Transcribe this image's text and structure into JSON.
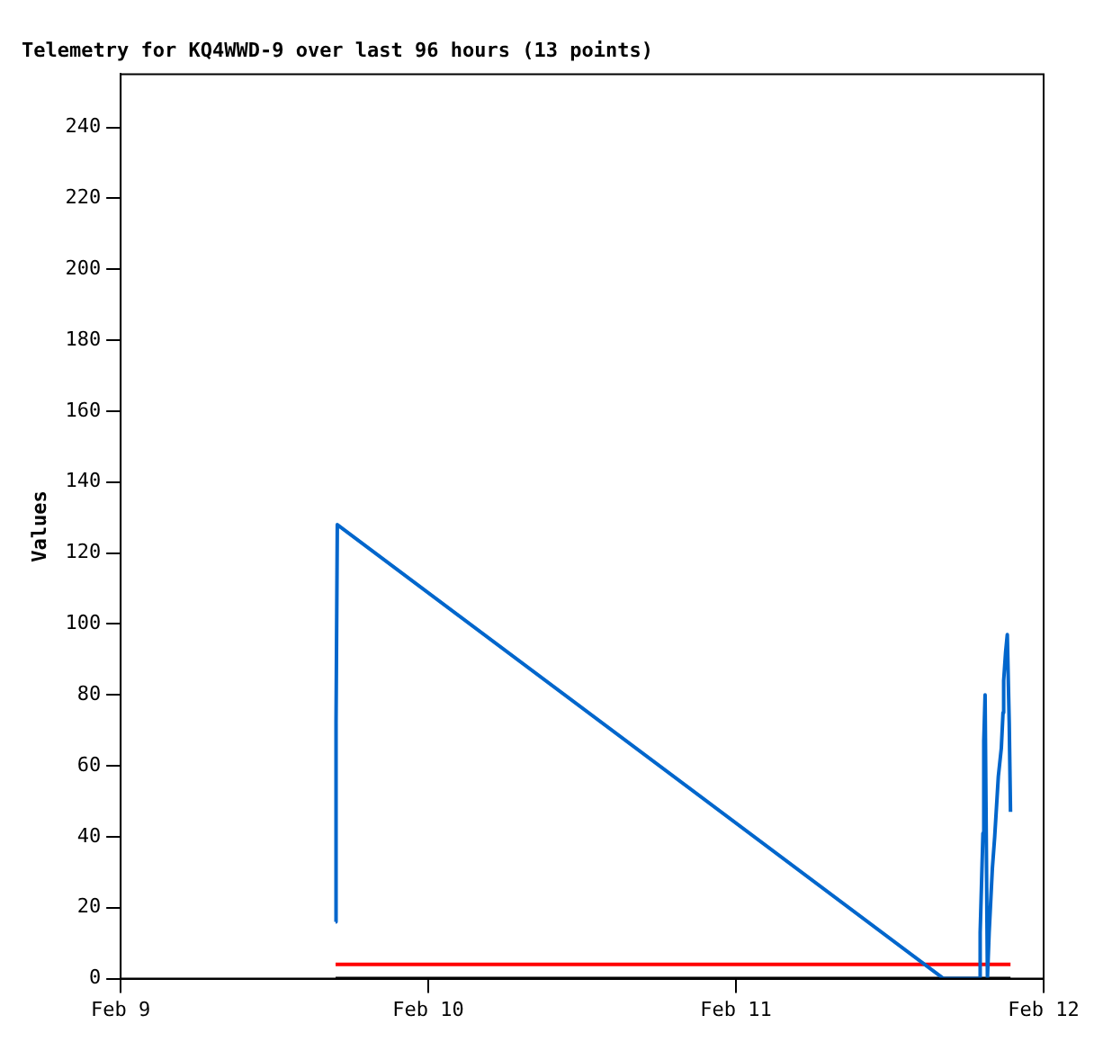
{
  "chart_data": {
    "type": "line",
    "title": "Telemetry for KQ4WWD-9 over last 96 hours (13 points)",
    "ylabel": "Values",
    "xlim": [
      "--02-09",
      "--02-12"
    ],
    "xticks": [
      {
        "value": "--02-09",
        "label": "Feb 9"
      },
      {
        "value": "--02-10",
        "label": "Feb 10"
      },
      {
        "value": "--02-11",
        "label": "Feb 11"
      },
      {
        "value": "--02-12",
        "label": "Feb 12"
      }
    ],
    "ylim": [
      0,
      255
    ],
    "yticks": [
      0,
      20,
      40,
      60,
      80,
      100,
      120,
      140,
      160,
      180,
      200,
      220,
      240
    ],
    "grid": false,
    "legend": false,
    "marker": "none",
    "line_style": "solid",
    "series": [
      {
        "color": "#0066cc",
        "x": [
          "--02-09T16:46",
          "--02-09T16:48",
          "--02-09T16:54",
          "--02-11T16:12",
          "--02-11T19:00",
          "--02-11T19:03",
          "--02-11T19:16",
          "--02-11T19:20",
          "--02-11T19:26",
          "--02-11T19:37",
          "--02-11T19:45",
          "--02-11T20:00",
          "--02-11T20:11",
          "--02-11T20:19",
          "--02-11T20:28",
          "--02-11T20:42",
          "--02-11T20:50",
          "--02-11T20:53",
          "--02-11T21:02",
          "--02-11T21:10",
          "--02-11T21:19",
          "--02-11T21:25"
        ],
        "values": [
          16,
          72,
          128,
          0,
          0,
          13,
          41,
          67,
          80,
          0,
          13,
          31,
          40,
          48,
          57,
          65,
          75,
          84,
          92,
          97,
          72,
          47
        ]
      },
      {
        "color": "#ff0000",
        "x": [
          "--02-09T16:46",
          "--02-11T21:25"
        ],
        "values": [
          4,
          4
        ]
      },
      {
        "color": "#000000",
        "x": [
          "--02-09T16:46",
          "--02-11T21:25"
        ],
        "values": [
          0,
          0
        ]
      }
    ]
  }
}
